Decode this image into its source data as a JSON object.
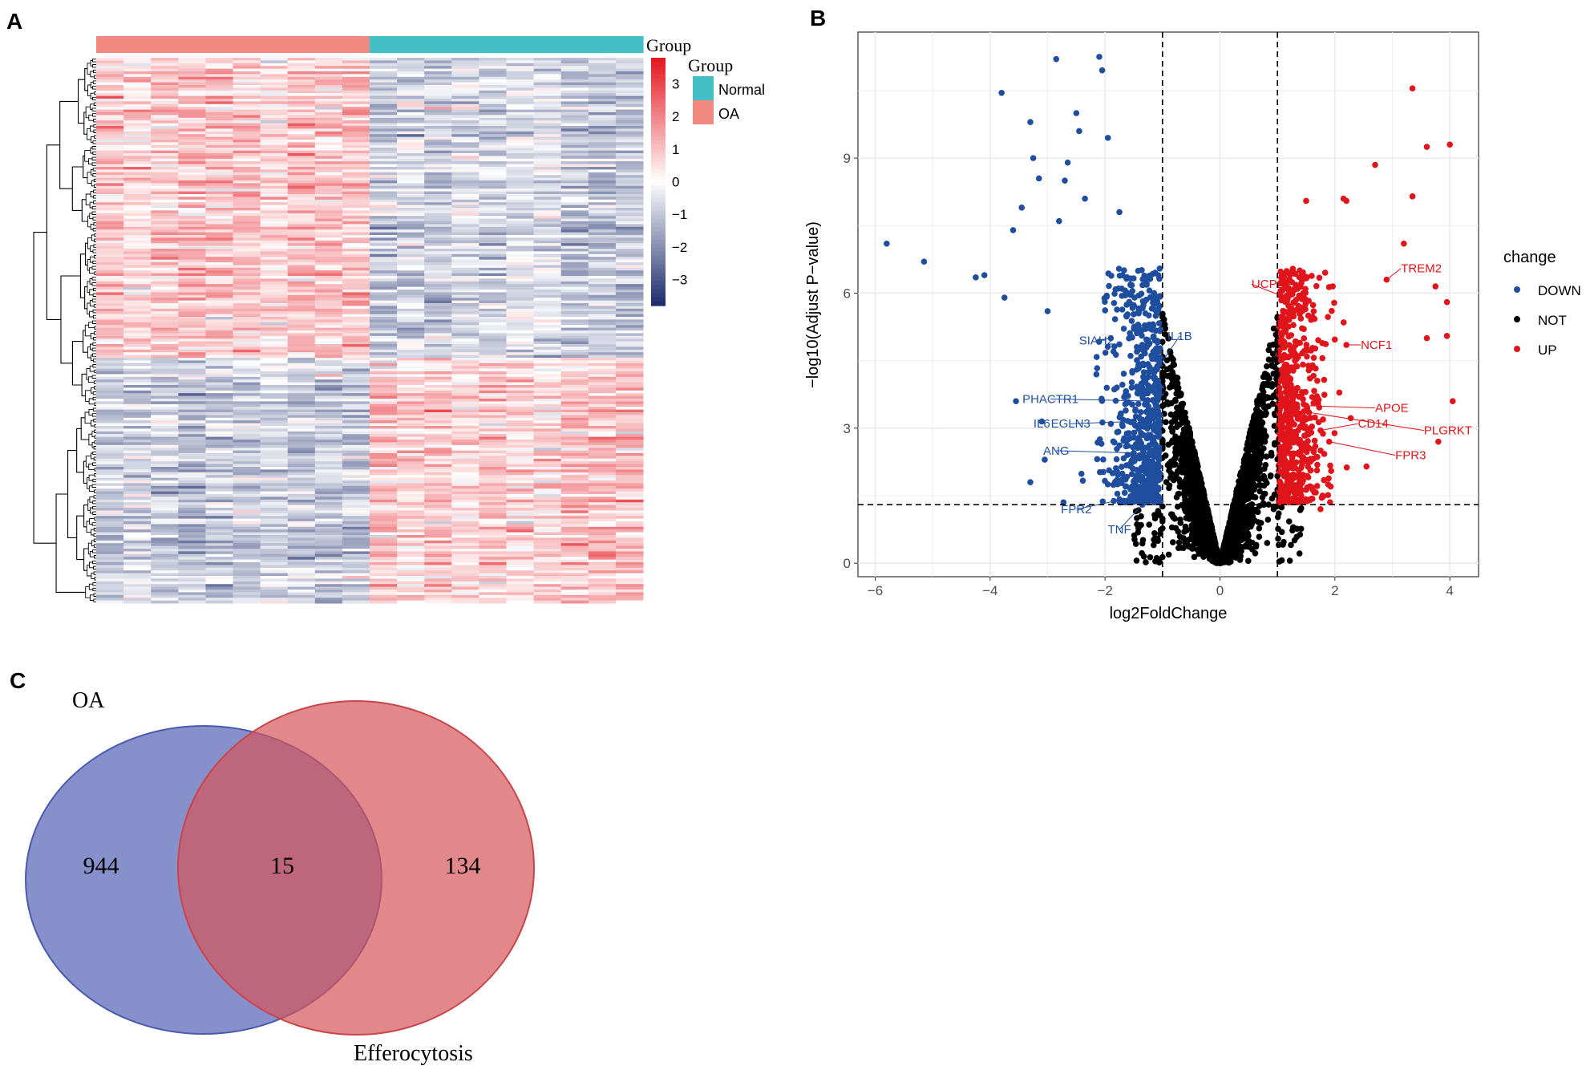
{
  "panels": {
    "a": "A",
    "b": "B",
    "c": "C"
  },
  "chart_data": [
    {
      "type": "heatmap",
      "annotation_title": "Group",
      "legend_title": "Group",
      "groups": [
        {
          "name": "Normal",
          "color": "#45BFC6"
        },
        {
          "name": "OA",
          "color": "#F08A80"
        }
      ],
      "column_groups": [
        "OA",
        "OA",
        "OA",
        "OA",
        "OA",
        "OA",
        "OA",
        "OA",
        "OA",
        "OA",
        "Normal",
        "Normal",
        "Normal",
        "Normal",
        "Normal",
        "Normal",
        "Normal",
        "Normal",
        "Normal",
        "Normal"
      ],
      "colorbar": {
        "ticks": [
          3,
          2,
          1,
          0,
          -1,
          -2,
          -3
        ],
        "range": [
          -3.8,
          3.8
        ],
        "low_color": "#1B2A6B",
        "mid_color": "#FFFFFF",
        "high_color": "#E4151E"
      },
      "row_clusters": [
        {
          "pattern": "up in OA",
          "share": 0.55
        },
        {
          "pattern": "down in OA",
          "share": 0.45
        }
      ],
      "dendrogram": "rows"
    },
    {
      "type": "scatter",
      "subtype": "volcano",
      "xlabel": "log2FoldChange",
      "ylabel": "−log10(Adjust P−value)",
      "xlim": [
        -6.3,
        4.5
      ],
      "ylim": [
        -0.3,
        11.8
      ],
      "xticks": [
        -6,
        -4,
        -2,
        0,
        2,
        4
      ],
      "xtick_labels": [
        "−6",
        "−4",
        "−2",
        "0",
        "2",
        "4"
      ],
      "yticks": [
        0,
        3,
        6,
        9
      ],
      "grid": true,
      "thresholds": {
        "log2fc": [
          -1,
          1
        ],
        "neglog10p": 1.3
      },
      "legend": {
        "title": "change",
        "position": "right",
        "entries": [
          {
            "name": "DOWN",
            "color": "#1F4E9E"
          },
          {
            "name": "NOT",
            "color": "#000000"
          },
          {
            "name": "UP",
            "color": "#E0141B"
          }
        ]
      },
      "labeled_genes": [
        {
          "gene": "TREM2",
          "change": "UP",
          "x": 2.9,
          "y": 6.3,
          "lx": 3.15,
          "ly": 6.55
        },
        {
          "gene": "UCP2",
          "change": "UP",
          "x": 1.05,
          "y": 5.95,
          "lx": 0.55,
          "ly": 6.2
        },
        {
          "gene": "NCF1",
          "change": "UP",
          "x": 2.2,
          "y": 4.85,
          "lx": 2.45,
          "ly": 4.85
        },
        {
          "gene": "APOE",
          "change": "UP",
          "x": 1.5,
          "y": 3.5,
          "lx": 2.7,
          "ly": 3.45
        },
        {
          "gene": "CD14",
          "change": "UP",
          "x": 1.75,
          "y": 2.95,
          "lx": 2.4,
          "ly": 3.1
        },
        {
          "gene": "PLGRKT",
          "change": "UP",
          "x": 1.55,
          "y": 3.35,
          "lx": 3.55,
          "ly": 2.95
        },
        {
          "gene": "FPR3",
          "change": "UP",
          "x": 1.9,
          "y": 2.7,
          "lx": 3.05,
          "ly": 2.4
        },
        {
          "gene": "IL1B",
          "change": "DOWN",
          "x": -1.1,
          "y": 4.3,
          "lx": -0.7,
          "ly": 5.05
        },
        {
          "gene": "SIAH2",
          "change": "DOWN",
          "x": -1.9,
          "y": 5.0,
          "lx": -2.15,
          "ly": 4.95
        },
        {
          "gene": "PHACTR1",
          "change": "DOWN",
          "x": -1.15,
          "y": 3.6,
          "lx": -2.95,
          "ly": 3.65
        },
        {
          "gene": "IL6",
          "change": "DOWN",
          "x": -3.1,
          "y": 3.15,
          "lx": -3.1,
          "ly": 3.1
        },
        {
          "gene": "EGLN3",
          "change": "DOWN",
          "x": -1.5,
          "y": 3.15,
          "lx": -2.6,
          "ly": 3.1
        },
        {
          "gene": "ANG",
          "change": "DOWN",
          "x": -1.5,
          "y": 2.45,
          "lx": -2.85,
          "ly": 2.5
        },
        {
          "gene": "FPR2",
          "change": "DOWN",
          "x": -1.2,
          "y": 1.55,
          "lx": -2.5,
          "ly": 1.2
        },
        {
          "gene": "TNF",
          "change": "DOWN",
          "x": -1.35,
          "y": 1.3,
          "lx": -1.75,
          "ly": 0.75
        }
      ],
      "outliers": {
        "DOWN": [
          [
            -5.8,
            7.1
          ],
          [
            -5.15,
            6.7
          ],
          [
            -4.25,
            6.35
          ],
          [
            -4.1,
            6.4
          ],
          [
            -3.8,
            10.45
          ],
          [
            -3.75,
            5.9
          ],
          [
            -3.55,
            3.6
          ],
          [
            -2.85,
            11.2
          ],
          [
            -2.1,
            11.25
          ],
          [
            -2.05,
            10.95
          ],
          [
            -3.3,
            9.8
          ],
          [
            -2.5,
            10.0
          ],
          [
            -2.45,
            9.6
          ],
          [
            -1.95,
            9.45
          ],
          [
            -3.25,
            9.0
          ],
          [
            -2.65,
            8.9
          ],
          [
            -3.15,
            8.55
          ],
          [
            -2.7,
            8.5
          ],
          [
            -3.45,
            7.9
          ],
          [
            -3.6,
            7.4
          ],
          [
            -2.35,
            8.1
          ],
          [
            -1.75,
            7.8
          ],
          [
            -2.8,
            7.6
          ],
          [
            -3.0,
            5.6
          ],
          [
            -3.3,
            1.8
          ],
          [
            -3.05,
            2.3
          ]
        ],
        "UP": [
          [
            3.35,
            10.55
          ],
          [
            3.6,
            9.25
          ],
          [
            4.0,
            9.3
          ],
          [
            3.35,
            8.15
          ],
          [
            2.7,
            8.85
          ],
          [
            2.15,
            8.1
          ],
          [
            2.2,
            8.05
          ],
          [
            1.5,
            8.05
          ],
          [
            3.75,
            6.15
          ],
          [
            3.95,
            5.8
          ],
          [
            3.6,
            5.0
          ],
          [
            3.95,
            5.05
          ],
          [
            4.05,
            3.6
          ],
          [
            3.8,
            2.7
          ],
          [
            3.2,
            7.1
          ],
          [
            2.55,
            2.15
          ],
          [
            1.75,
            1.2
          ]
        ]
      },
      "counts_shown": "approx. 15000 genes (dense point cloud)"
    },
    {
      "type": "venn",
      "sets": [
        {
          "name": "OA",
          "only": 944,
          "color": "#5767B8"
        },
        {
          "name": "Efferocytosis",
          "only": 134,
          "color": "#D65459"
        }
      ],
      "intersection": 15
    }
  ]
}
